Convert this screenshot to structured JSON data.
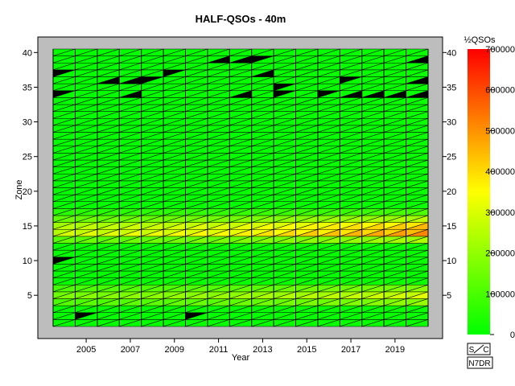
{
  "chart_data": {
    "type": "heatmap",
    "title": "HALF-QSOs - 40m",
    "xlabel": "Year",
    "ylabel": "Zone",
    "colorbar_label": "½QSOs",
    "x_values": [
      2004,
      2005,
      2006,
      2007,
      2008,
      2009,
      2010,
      2011,
      2012,
      2013,
      2014,
      2015,
      2016,
      2017,
      2018,
      2019,
      2020
    ],
    "x_ticks": [
      2005,
      2007,
      2009,
      2011,
      2013,
      2015,
      2017,
      2019
    ],
    "y_range": [
      1,
      40
    ],
    "y_ticks": [
      5,
      10,
      15,
      20,
      25,
      30,
      35,
      40
    ],
    "color_range": [
      0,
      700000
    ],
    "color_ticks": [
      0,
      100000,
      200000,
      300000,
      400000,
      500000,
      600000,
      700000
    ],
    "colormap": [
      "#00ff00",
      "#ffff00",
      "#ff0000"
    ],
    "plot_background": "#bdbdbd",
    "zero_color": "#000000",
    "cells_note": "value per zone/year half-QSO count; triangles = two halves of each year cell",
    "zone_profile": {
      "default": 8000,
      "4": 120000,
      "5": 180000,
      "6": 110000,
      "13": 140000,
      "14": 300000,
      "15": 260000,
      "16": 150000,
      "17": 60000
    },
    "year_growth": [
      0.9,
      0.95,
      0.95,
      1.0,
      1.0,
      1.05,
      1.1,
      1.1,
      1.15,
      1.2,
      1.25,
      1.3,
      1.35,
      1.4,
      1.45,
      1.5,
      1.6
    ],
    "zero_cells": [
      {
        "year": 2004,
        "zone": 37,
        "half": "upper"
      },
      {
        "year": 2004,
        "zone": 34,
        "half": "upper"
      },
      {
        "year": 2004,
        "zone": 10,
        "half": "upper"
      },
      {
        "year": 2005,
        "zone": 2,
        "half": "upper"
      },
      {
        "year": 2006,
        "zone": 36,
        "half": "lower"
      },
      {
        "year": 2007,
        "zone": 36,
        "half": "lower"
      },
      {
        "year": 2007,
        "zone": 34,
        "half": "lower"
      },
      {
        "year": 2008,
        "zone": 36,
        "half": "upper"
      },
      {
        "year": 2009,
        "zone": 37,
        "half": "upper"
      },
      {
        "year": 2010,
        "zone": 2,
        "half": "upper"
      },
      {
        "year": 2011,
        "zone": 39,
        "half": "lower"
      },
      {
        "year": 2012,
        "zone": 39,
        "half": "lower"
      },
      {
        "year": 2012,
        "zone": 34,
        "half": "lower"
      },
      {
        "year": 2013,
        "zone": 39,
        "half": "upper"
      },
      {
        "year": 2013,
        "zone": 37,
        "half": "lower"
      },
      {
        "year": 2014,
        "zone": 35,
        "half": "upper"
      },
      {
        "year": 2014,
        "zone": 34,
        "half": "upper"
      },
      {
        "year": 2016,
        "zone": 34,
        "half": "upper"
      },
      {
        "year": 2017,
        "zone": 36,
        "half": "upper"
      },
      {
        "year": 2017,
        "zone": 34,
        "half": "lower"
      },
      {
        "year": 2018,
        "zone": 34,
        "half": "lower"
      },
      {
        "year": 2019,
        "zone": 34,
        "half": "lower"
      },
      {
        "year": 2020,
        "zone": 39,
        "half": "lower"
      },
      {
        "year": 2020,
        "zone": 36,
        "half": "lower"
      },
      {
        "year": 2020,
        "zone": 34,
        "half": "lower"
      }
    ]
  },
  "badges": {
    "sc_left": "S",
    "sc_right": "C",
    "author": "N7DR"
  }
}
